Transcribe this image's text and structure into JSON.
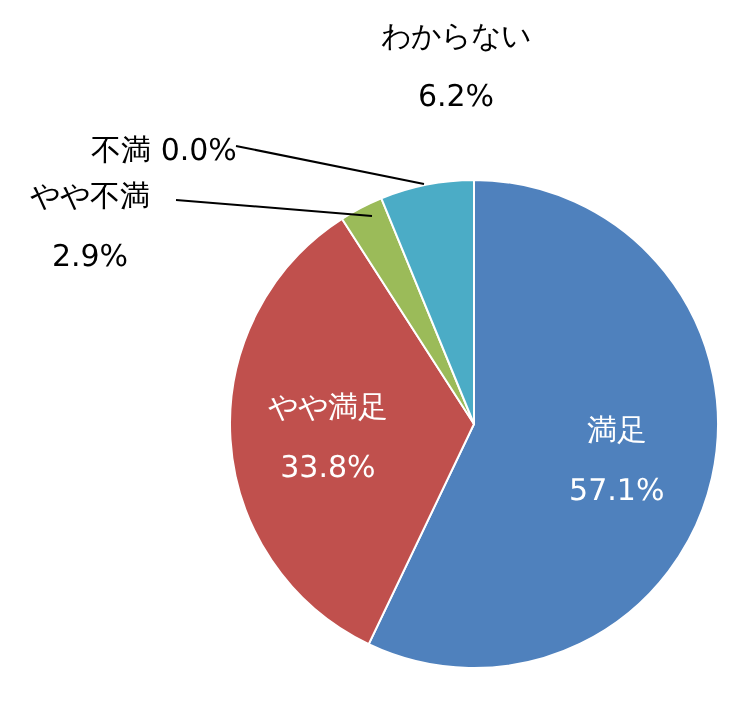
{
  "chart_data": {
    "type": "pie",
    "categories": [
      "満足",
      "やや満足",
      "やや不満",
      "不満",
      "わからない"
    ],
    "values": [
      57.1,
      33.8,
      2.9,
      0.0,
      6.2
    ],
    "colors": [
      "#4f81bd",
      "#c0504d",
      "#9bbb59",
      "#8064a2",
      "#4bacc6"
    ],
    "value_labels": [
      "57.1%",
      "33.8%",
      "2.9%",
      "0.0%",
      "6.2%"
    ]
  }
}
